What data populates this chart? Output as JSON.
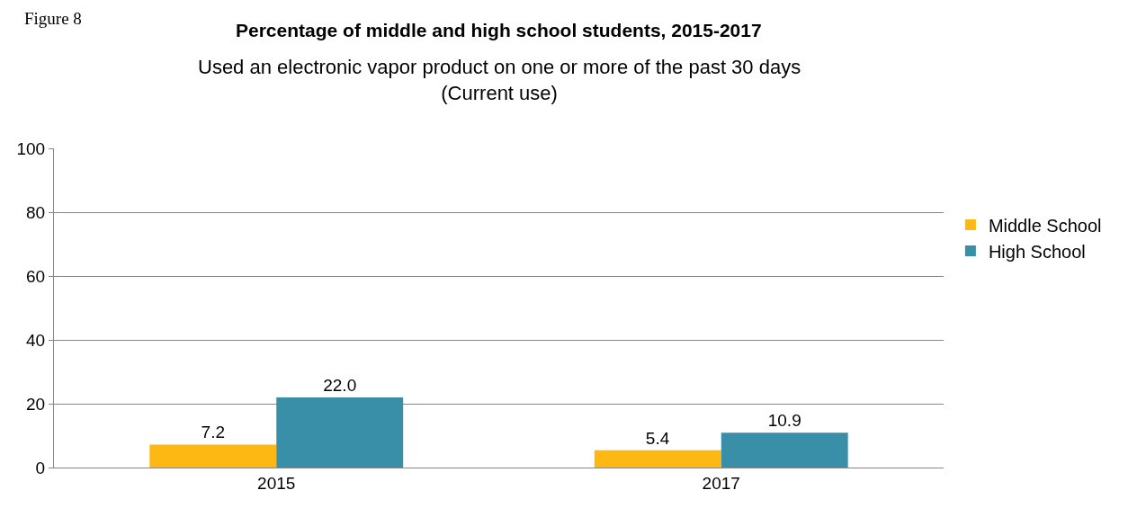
{
  "chart_data": {
    "type": "bar",
    "title": "Percentage of middle and high school students, 2015-2017",
    "subtitle": "Used an electronic vapor product on one or more of the past 30 days\n(Current use)",
    "annotations": [
      "Figure 8"
    ],
    "categories": [
      "2015",
      "2017"
    ],
    "series": [
      {
        "name": "Middle School",
        "color": "#fdb813",
        "values": [
          7.2,
          5.4
        ],
        "value_labels": [
          "7.2",
          "5.4"
        ]
      },
      {
        "name": "High School",
        "color": "#3a8fa8",
        "values": [
          22.0,
          10.9
        ],
        "value_labels": [
          "22.0",
          "10.9"
        ]
      }
    ],
    "ylim": [
      0,
      100
    ],
    "yticks": [
      0,
      20,
      40,
      60,
      80,
      100
    ],
    "grid": "y",
    "legend": "right"
  }
}
